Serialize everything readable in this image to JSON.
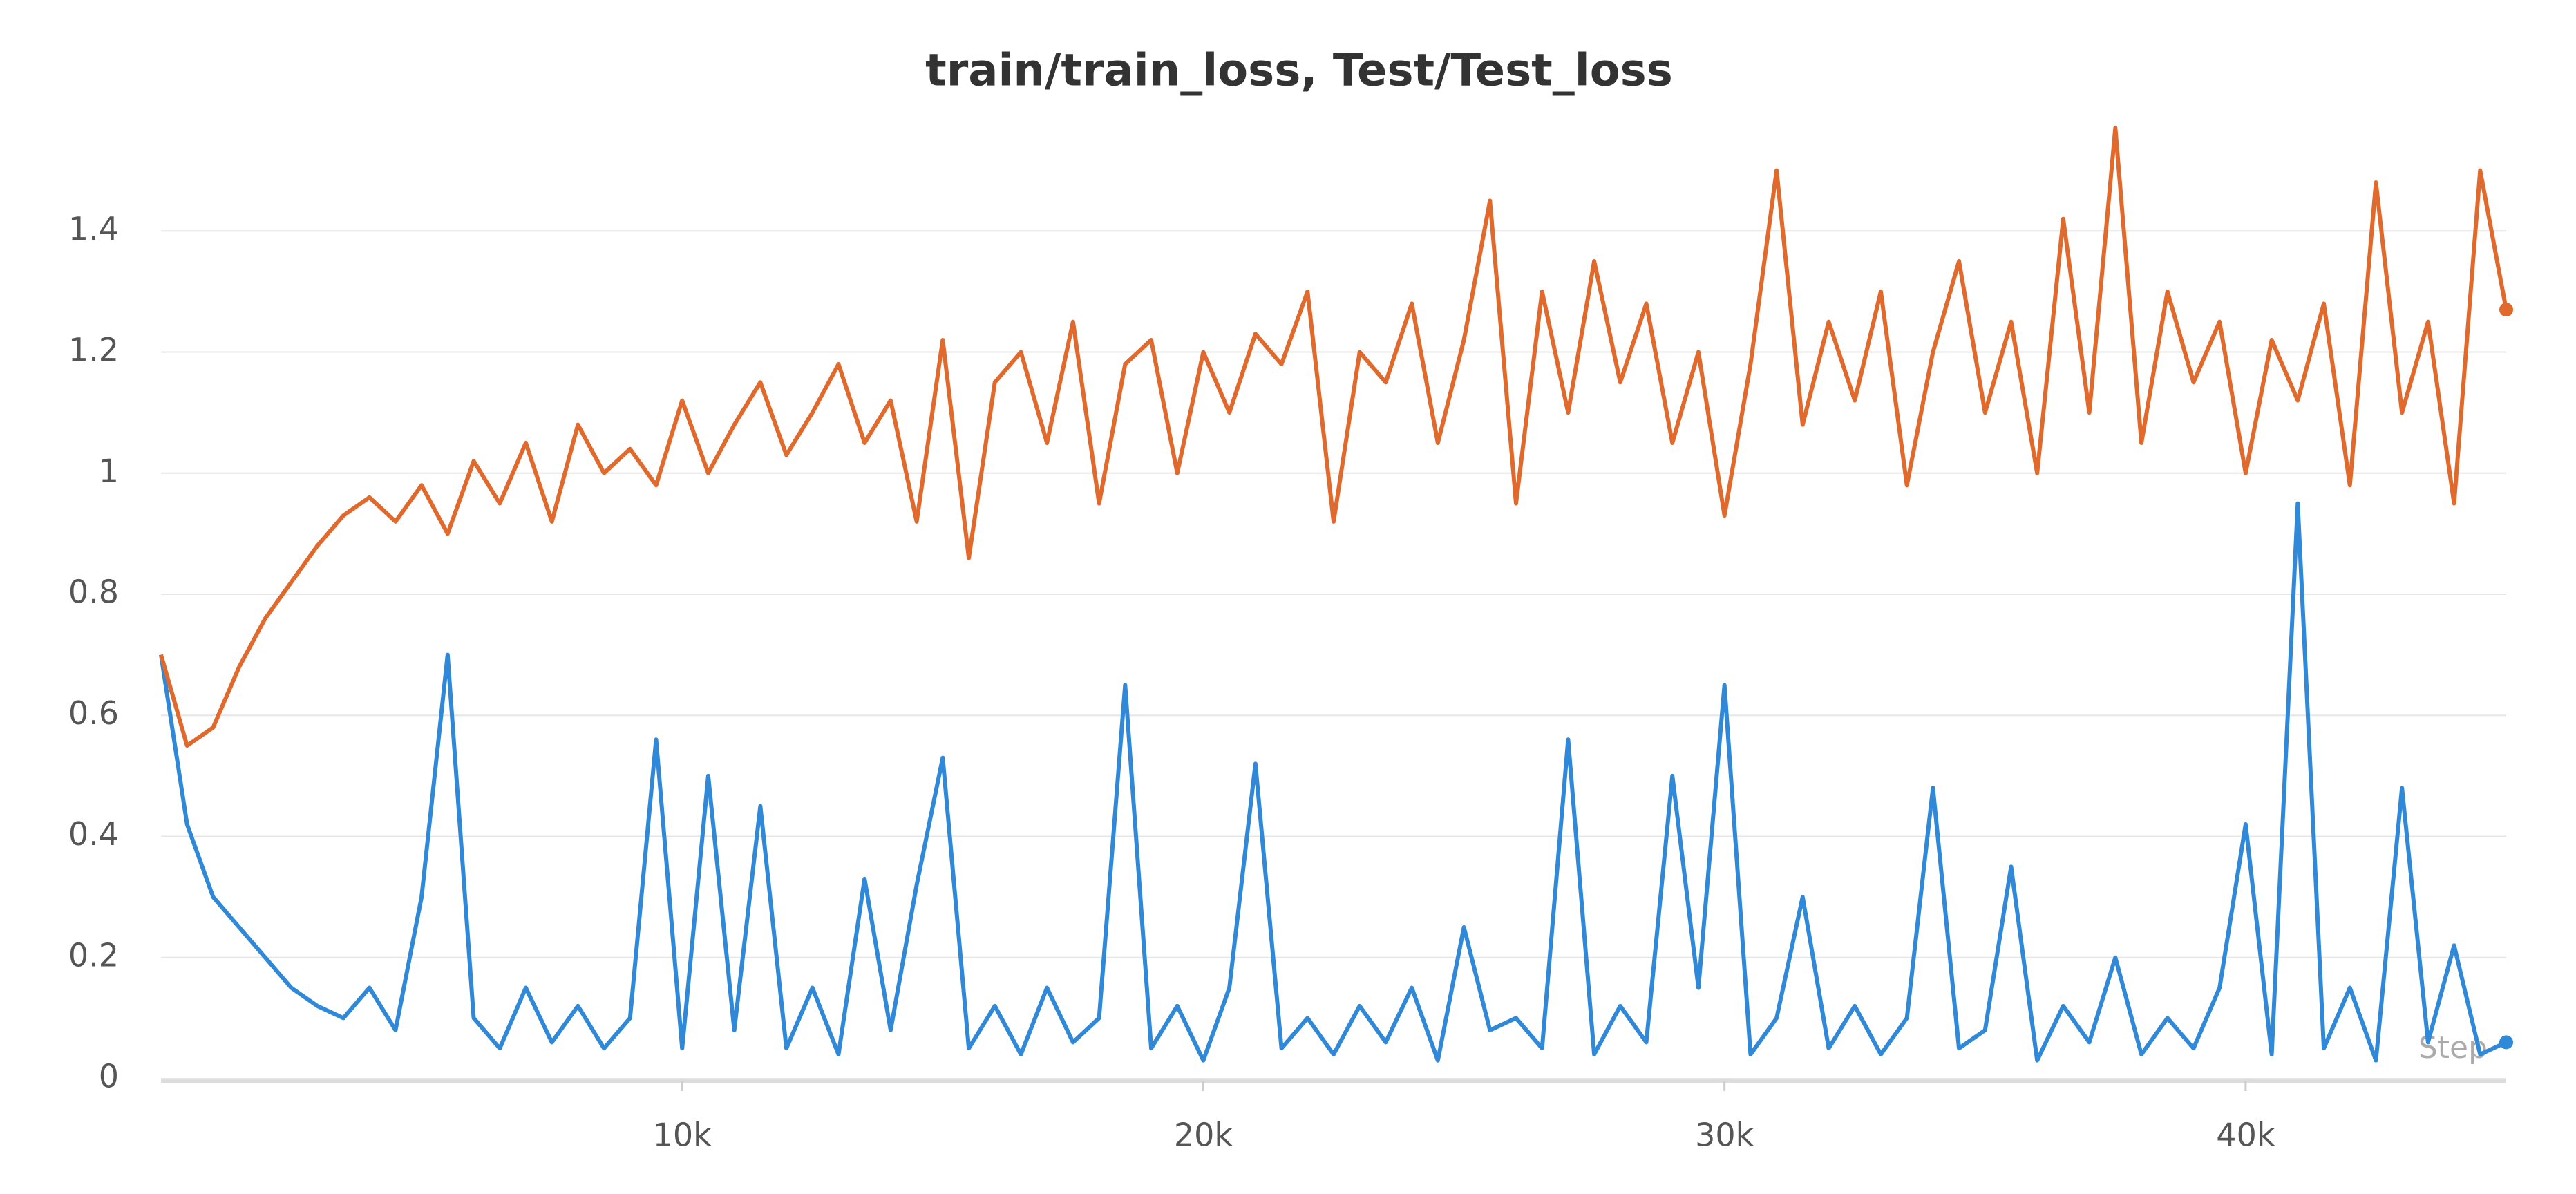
{
  "chart_data": {
    "type": "line",
    "title": "train/train_loss, Test/Test_loss",
    "xlabel": "Step",
    "x": [
      0,
      500,
      1000,
      1500,
      2000,
      2500,
      3000,
      3500,
      4000,
      4500,
      5000,
      5500,
      6000,
      6500,
      7000,
      7500,
      8000,
      8500,
      9000,
      9500,
      10000,
      10500,
      11000,
      11500,
      12000,
      12500,
      13000,
      13500,
      14000,
      14500,
      15000,
      15500,
      16000,
      16500,
      17000,
      17500,
      18000,
      18500,
      19000,
      19500,
      20000,
      20500,
      21000,
      21500,
      22000,
      22500,
      23000,
      23500,
      24000,
      24500,
      25000,
      25500,
      26000,
      26500,
      27000,
      27500,
      28000,
      28500,
      29000,
      29500,
      30000,
      30500,
      31000,
      31500,
      32000,
      32500,
      33000,
      33500,
      34000,
      34500,
      35000,
      35500,
      36000,
      36500,
      37000,
      37500,
      38000,
      38500,
      39000,
      39500,
      40000,
      40500,
      41000,
      41500,
      42000,
      42500,
      43000,
      43500,
      44000,
      44500,
      45000
    ],
    "series": [
      {
        "color": "#e0692b",
        "values": [
          0.7,
          0.55,
          0.58,
          0.68,
          0.76,
          0.82,
          0.88,
          0.93,
          0.96,
          0.92,
          0.98,
          0.9,
          1.02,
          0.95,
          1.05,
          0.92,
          1.08,
          1.0,
          1.04,
          0.98,
          1.12,
          1.0,
          1.08,
          1.15,
          1.03,
          1.1,
          1.18,
          1.05,
          1.12,
          0.92,
          1.22,
          0.86,
          1.15,
          1.2,
          1.05,
          1.25,
          0.95,
          1.18,
          1.22,
          1.0,
          1.2,
          1.1,
          1.23,
          1.18,
          1.3,
          0.92,
          1.2,
          1.15,
          1.28,
          1.05,
          1.22,
          1.45,
          0.95,
          1.3,
          1.1,
          1.35,
          1.15,
          1.28,
          1.05,
          1.2,
          0.93,
          1.18,
          1.5,
          1.08,
          1.25,
          1.12,
          1.3,
          0.98,
          1.2,
          1.35,
          1.1,
          1.25,
          1.0,
          1.42,
          1.1,
          1.57,
          1.05,
          1.3,
          1.15,
          1.25,
          1.0,
          1.22,
          1.12,
          1.28,
          0.98,
          1.48,
          1.1,
          1.25,
          0.95,
          1.5,
          1.27
        ]
      },
      {
        "color": "#2f88d8",
        "values": [
          0.7,
          0.42,
          0.3,
          0.25,
          0.2,
          0.15,
          0.12,
          0.1,
          0.15,
          0.08,
          0.3,
          0.7,
          0.1,
          0.05,
          0.15,
          0.06,
          0.12,
          0.05,
          0.1,
          0.56,
          0.05,
          0.5,
          0.08,
          0.45,
          0.05,
          0.15,
          0.04,
          0.33,
          0.08,
          0.32,
          0.53,
          0.05,
          0.12,
          0.04,
          0.15,
          0.06,
          0.1,
          0.65,
          0.05,
          0.12,
          0.03,
          0.15,
          0.52,
          0.05,
          0.1,
          0.04,
          0.12,
          0.06,
          0.15,
          0.03,
          0.25,
          0.08,
          0.1,
          0.05,
          0.56,
          0.04,
          0.12,
          0.06,
          0.5,
          0.15,
          0.65,
          0.04,
          0.1,
          0.3,
          0.05,
          0.12,
          0.04,
          0.1,
          0.48,
          0.05,
          0.08,
          0.35,
          0.03,
          0.12,
          0.06,
          0.2,
          0.04,
          0.1,
          0.05,
          0.15,
          0.42,
          0.04,
          0.95,
          0.05,
          0.15,
          0.03,
          0.48,
          0.06,
          0.22,
          0.04,
          0.06
        ]
      }
    ],
    "xlim": [
      0,
      45000
    ],
    "ylim": [
      0,
      1.6
    ],
    "xticks": [
      {
        "value": 10000,
        "label": "10k"
      },
      {
        "value": 20000,
        "label": "20k"
      },
      {
        "value": 30000,
        "label": "30k"
      },
      {
        "value": 40000,
        "label": "40k"
      }
    ],
    "yticks": [
      0,
      0.2,
      0.4,
      0.6,
      0.8,
      1,
      1.2,
      1.4
    ],
    "grid": true
  }
}
